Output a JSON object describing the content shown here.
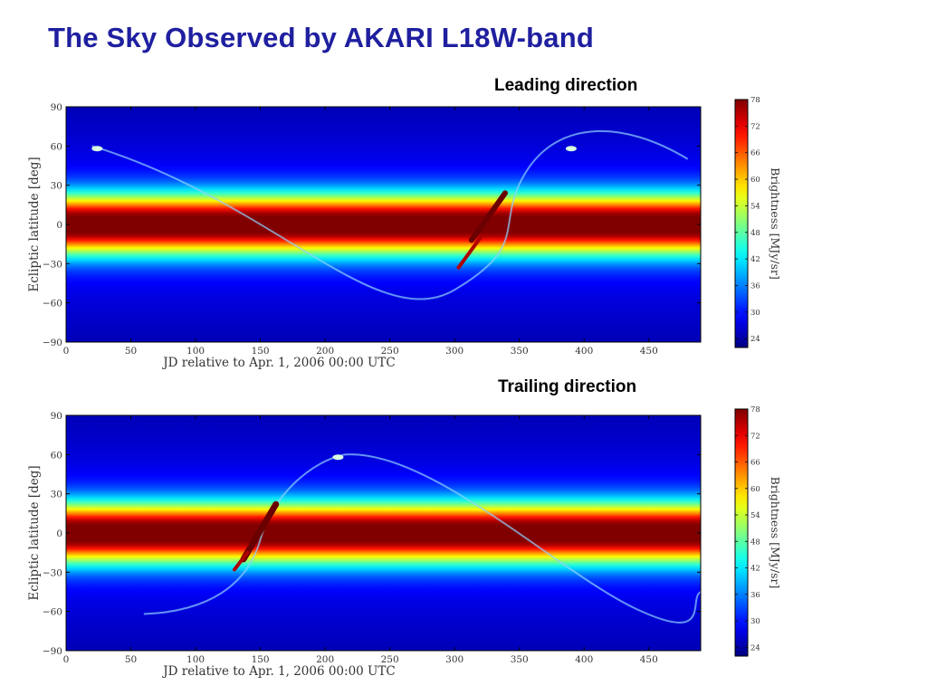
{
  "slide": {
    "title": "The Sky Observed by AKARI L18W-band"
  },
  "chart_data": [
    {
      "type": "heatmap",
      "title": "Leading direction",
      "xlabel": "JD relative to Apr. 1, 2006 00:00 UTC",
      "ylabel": "Ecliptic latitude [deg]",
      "xlim": [
        0,
        490
      ],
      "ylim": [
        -90,
        90
      ],
      "x_ticks": [
        0,
        50,
        100,
        150,
        200,
        250,
        300,
        350,
        400,
        450
      ],
      "y_ticks": [
        90,
        60,
        30,
        0,
        -30,
        -60,
        -90
      ],
      "y_tick_labels": [
        "90",
        "60",
        "30",
        "0",
        "−30",
        "−60",
        "−90"
      ],
      "colorscale": "jet",
      "colorbar": {
        "label": "Brightness [MJy/sr]",
        "range": [
          22,
          78
        ],
        "ticks": [
          78,
          72,
          66,
          60,
          54,
          48,
          42,
          36,
          30,
          24
        ]
      },
      "galactic_plane_crossing_day": 325
    },
    {
      "type": "heatmap",
      "title": "Trailing direction",
      "xlabel": "JD relative to Apr. 1, 2006 00:00 UTC",
      "ylabel": "Ecliptic latitude [deg]",
      "xlim": [
        0,
        490
      ],
      "ylim": [
        -90,
        90
      ],
      "x_ticks": [
        0,
        50,
        100,
        150,
        200,
        250,
        300,
        350,
        400,
        450
      ],
      "y_ticks": [
        90,
        60,
        30,
        0,
        -30,
        -60,
        -90
      ],
      "y_tick_labels": [
        "90",
        "60",
        "30",
        "0",
        "−30",
        "−60",
        "−90"
      ],
      "colorscale": "jet",
      "colorbar": {
        "label": "Brightness [MJy/sr]",
        "range": [
          22,
          78
        ],
        "ticks": [
          78,
          72,
          66,
          60,
          54,
          48,
          42,
          36,
          30,
          24
        ]
      },
      "galactic_plane_crossing_day": 150
    }
  ]
}
